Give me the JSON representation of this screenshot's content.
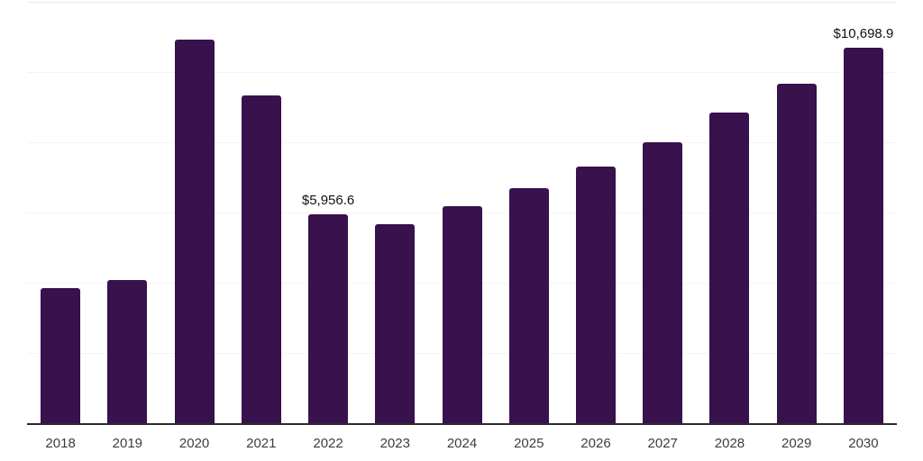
{
  "chart_data": {
    "type": "bar",
    "title": "",
    "xlabel": "",
    "ylabel": "",
    "categories": [
      "2018",
      "2019",
      "2020",
      "2021",
      "2022",
      "2023",
      "2024",
      "2025",
      "2026",
      "2027",
      "2028",
      "2029",
      "2030"
    ],
    "values": [
      3860,
      4090,
      10920,
      9340,
      5956.6,
      5680,
      6190,
      6700,
      7320,
      8010,
      8850,
      9670,
      10698.9
    ],
    "data_labels": [
      {
        "index": 4,
        "text": "$5,956.6"
      },
      {
        "index": 12,
        "text": "$10,698.9"
      }
    ],
    "ylim": [
      0,
      12000
    ],
    "gridline_step": 2000,
    "grid": "horizontal",
    "legend": "none",
    "y_tick_labels_visible": false
  },
  "colors": {
    "background": "#ffffff",
    "bar": "#38114d",
    "axis_line": "#2b2b2b",
    "gridline": "#f4f4f4",
    "top_gridline": "#ebebeb",
    "tick_label": "#3d3d3d",
    "data_label": "#111111"
  }
}
